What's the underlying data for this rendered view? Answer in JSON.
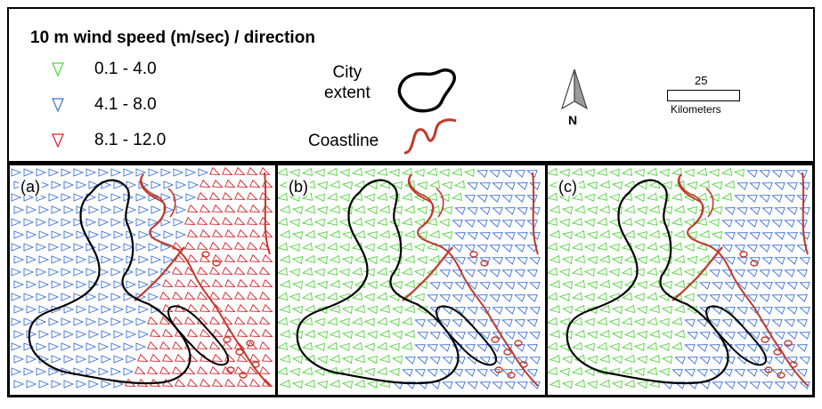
{
  "legend": {
    "title": "10 m wind speed (m/sec) / direction",
    "classes": [
      {
        "label": "0.1 - 4.0",
        "color": "#4fd33a"
      },
      {
        "label": "4.1 - 8.0",
        "color": "#3a6fd8"
      },
      {
        "label": "8.1 - 12.0",
        "color": "#d8202a"
      }
    ],
    "city_label_line1": "City",
    "city_label_line2": "extent",
    "coastline_label": "Coastline",
    "city_color": "#000000",
    "coast_color": "#c0392b"
  },
  "north_arrow": {
    "label": "N"
  },
  "scale_bar": {
    "value": "25",
    "unit": "Kilometers"
  },
  "panels": [
    {
      "label": "(a)",
      "land_class": 1,
      "sea_class": 2
    },
    {
      "label": "(b)",
      "land_class": 0,
      "sea_class": 1
    },
    {
      "label": "(c)",
      "land_class": 0,
      "sea_class": 1
    }
  ]
}
